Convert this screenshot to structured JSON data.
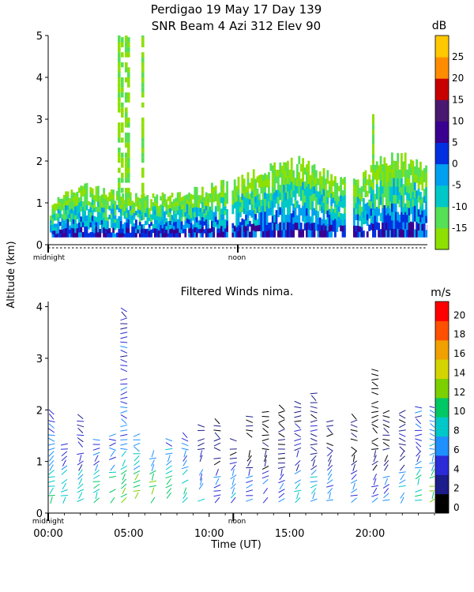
{
  "title_line1": "Perdigao  19 May 17 Day 139",
  "title_line2": "SNR Beam 4 Azi 312 Elev 90",
  "ylabel": "Altitude (km)",
  "colors": {
    "snr_scale": [
      "#8ee000",
      "#55e055",
      "#00c8c8",
      "#00a0f0",
      "#0030e0",
      "#3a0090",
      "#4a1870",
      "#c80000",
      "#ff8c00",
      "#ffc800"
    ],
    "wind_scale": [
      "#000000",
      "#1c1c8a",
      "#2b2bd8",
      "#1e90ff",
      "#00c8c8",
      "#00c864",
      "#7cd000",
      "#d4d400",
      "#f0a000",
      "#ff5000",
      "#ff0000"
    ]
  },
  "chart_data": [
    {
      "type": "heatmap",
      "name": "snr",
      "title": "SNR Beam 4 Azi 312 Elev 90",
      "colorbar_label": "dB",
      "colorbar_ticks": [
        "25",
        "20",
        "15",
        "10",
        "5",
        "0",
        "-5",
        "-10",
        "-15"
      ],
      "colorbar_range": [
        -15,
        30
      ],
      "ylim": [
        0,
        5
      ],
      "yticks": [
        "0",
        "1",
        "2",
        "3",
        "4",
        "5"
      ],
      "x_markers": [
        "midnight",
        "noon"
      ],
      "xlim_hours": [
        0,
        24
      ],
      "echo_top_km": [
        [
          0,
          0.9
        ],
        [
          1,
          1.2
        ],
        [
          2,
          1.3
        ],
        [
          3,
          1.3
        ],
        [
          4,
          1.2
        ],
        [
          5,
          1.2
        ],
        [
          6,
          1.1
        ],
        [
          7,
          1.1
        ],
        [
          8,
          1.2
        ],
        [
          9,
          1.3
        ],
        [
          10,
          1.3
        ],
        [
          11,
          1.4
        ],
        [
          12,
          1.5
        ],
        [
          13,
          1.7
        ],
        [
          14,
          1.85
        ],
        [
          15,
          1.95
        ],
        [
          16,
          1.95
        ],
        [
          17,
          1.8
        ],
        [
          18,
          1.6
        ],
        [
          19,
          1.45
        ],
        [
          20,
          1.6
        ],
        [
          21,
          2.0
        ],
        [
          22,
          2.1
        ],
        [
          23,
          2.1
        ],
        [
          24,
          1.8
        ]
      ]
    },
    {
      "type": "scatter",
      "name": "filtered_winds",
      "title": "Filtered Winds nima.",
      "colorbar_label": "m/s",
      "colorbar_ticks": [
        "20",
        "18",
        "16",
        "14",
        "12",
        "10",
        "8",
        "6",
        "4",
        "2",
        "0"
      ],
      "colorbar_range": [
        0,
        22
      ],
      "ylim": [
        0,
        4.1
      ],
      "yticks": [
        "0",
        "1",
        "2",
        "3",
        "4"
      ],
      "xlabel": "Time (UT)",
      "xticks": [
        "00:00",
        "05:00",
        "10:00",
        "15:00",
        "20:00"
      ],
      "xlim_hours": [
        0,
        24
      ],
      "x_markers": [
        "midnight",
        "noon"
      ],
      "column_top_km": [
        [
          0.2,
          2.0
        ],
        [
          1.0,
          1.4
        ],
        [
          2.0,
          1.9
        ],
        [
          3.0,
          1.5
        ],
        [
          4.0,
          1.6
        ],
        [
          4.7,
          4.0
        ],
        [
          5.5,
          1.6
        ],
        [
          6.5,
          1.3
        ],
        [
          7.5,
          1.5
        ],
        [
          8.5,
          1.6
        ],
        [
          9.5,
          1.7
        ],
        [
          10.5,
          1.8
        ],
        [
          11.5,
          1.5
        ],
        [
          12.5,
          1.9
        ],
        [
          13.5,
          2.0
        ],
        [
          14.5,
          2.1
        ],
        [
          15.5,
          2.2
        ],
        [
          16.5,
          2.4
        ],
        [
          17.5,
          1.9
        ],
        [
          19.0,
          1.9
        ],
        [
          20.3,
          2.8
        ],
        [
          21.0,
          2.0
        ],
        [
          22.0,
          2.0
        ],
        [
          23.0,
          2.1
        ],
        [
          23.9,
          2.2
        ]
      ],
      "speed_profile_mps": [
        [
          0,
          8
        ],
        [
          2,
          6
        ],
        [
          4,
          8
        ],
        [
          6,
          10
        ],
        [
          8,
          8
        ],
        [
          10,
          4
        ],
        [
          12,
          4
        ],
        [
          14,
          3
        ],
        [
          16,
          6
        ],
        [
          18,
          4
        ],
        [
          20,
          3
        ],
        [
          22,
          5
        ],
        [
          24,
          9
        ]
      ]
    }
  ]
}
